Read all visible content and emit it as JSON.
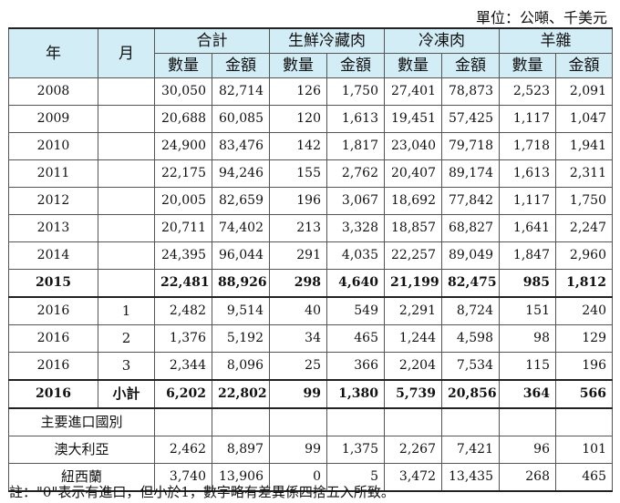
{
  "unit": "單位：公噸、千美元",
  "header": {
    "year": "年",
    "month": "月",
    "groups": [
      "合計",
      "生鮮冷藏肉",
      "冷凍肉",
      "羊雜"
    ],
    "sub": [
      "數量",
      "金額",
      "數量",
      "金額",
      "數量",
      "金額",
      "數量",
      "金額"
    ]
  },
  "rows": [
    {
      "year": "2008",
      "month": "",
      "vals": [
        "30,050",
        "82,714",
        "126",
        "1,750",
        "27,401",
        "78,873",
        "2,523",
        "2,091"
      ]
    },
    {
      "year": "2009",
      "month": "",
      "vals": [
        "20,688",
        "60,085",
        "120",
        "1,613",
        "19,451",
        "57,425",
        "1,117",
        "1,047"
      ]
    },
    {
      "year": "2010",
      "month": "",
      "vals": [
        "24,900",
        "83,476",
        "142",
        "1,817",
        "23,040",
        "79,718",
        "1,718",
        "1,941"
      ]
    },
    {
      "year": "2011",
      "month": "",
      "vals": [
        "22,175",
        "94,246",
        "155",
        "2,762",
        "20,407",
        "89,174",
        "1,613",
        "2,311"
      ]
    },
    {
      "year": "2012",
      "month": "",
      "vals": [
        "20,005",
        "82,659",
        "196",
        "3,067",
        "18,692",
        "77,842",
        "1,117",
        "1,750"
      ]
    },
    {
      "year": "2013",
      "month": "",
      "vals": [
        "20,711",
        "74,402",
        "213",
        "3,328",
        "18,857",
        "68,827",
        "1,641",
        "2,247"
      ]
    },
    {
      "year": "2014",
      "month": "",
      "vals": [
        "24,395",
        "96,044",
        "291",
        "4,035",
        "22,257",
        "89,049",
        "1,847",
        "2,960"
      ]
    },
    {
      "year": "2015",
      "month": "",
      "vals": [
        "22,481",
        "88,926",
        "298",
        "4,640",
        "21,199",
        "82,475",
        "985",
        "1,812"
      ]
    },
    {
      "year": "2016",
      "month": "1",
      "vals": [
        "2,482",
        "9,514",
        "40",
        "549",
        "2,291",
        "8,724",
        "151",
        "240"
      ]
    },
    {
      "year": "2016",
      "month": "2",
      "vals": [
        "1,376",
        "5,192",
        "34",
        "465",
        "1,244",
        "4,598",
        "98",
        "129"
      ]
    },
    {
      "year": "2016",
      "month": "3",
      "vals": [
        "2,344",
        "8,096",
        "25",
        "366",
        "2,204",
        "7,534",
        "115",
        "196"
      ]
    },
    {
      "year": "2016",
      "month": "小計",
      "vals": [
        "6,202",
        "22,802",
        "99",
        "1,380",
        "5,739",
        "20,856",
        "364",
        "566"
      ]
    }
  ],
  "section_label": "主要進口國別",
  "countries": [
    {
      "name": "澳大利亞",
      "vals": [
        "2,462",
        "8,897",
        "99",
        "1,375",
        "2,267",
        "7,421",
        "96",
        "101"
      ]
    },
    {
      "name": "紐西蘭",
      "vals": [
        "3,740",
        "13,906",
        "0",
        "5",
        "3,472",
        "13,435",
        "268",
        "465"
      ]
    }
  ],
  "note": "註：\"0\"表示有進口，但小於1，數字略有差異係四捨五入所致。"
}
